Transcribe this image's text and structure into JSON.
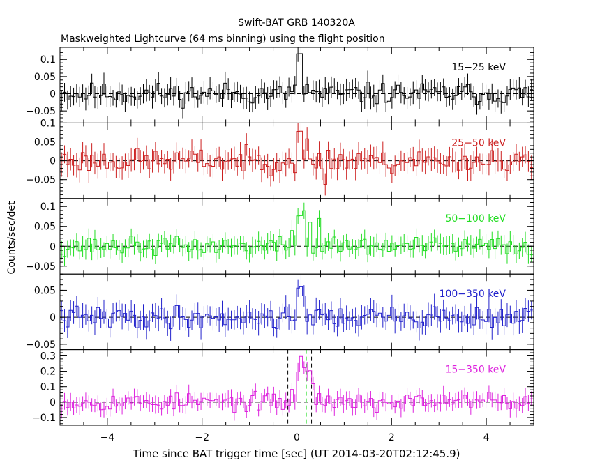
{
  "chart_data": {
    "type": "line",
    "title": "Swift-BAT GRB 140320A",
    "subtitle": "Maskweighted Lightcurve (64 ms binning) using the flight position",
    "xlabel": "Time since BAT trigger time [sec] (UT 2014-03-20T02:12:45.9)",
    "ylabel": "Counts/sec/det",
    "xlim": [
      -5,
      5
    ],
    "x_ticks": [
      -4,
      -2,
      0,
      2,
      4
    ],
    "x_tick_labels": [
      "−4",
      "−2",
      "0",
      "2",
      "4"
    ],
    "bin_width_s": 0.064,
    "vlines_black": [
      -0.19,
      0.31
    ],
    "vlines_green": [
      0.0,
      0.2
    ],
    "panels": [
      {
        "name": "15−25 keV",
        "color": "#000000",
        "ylim": [
          -0.085,
          0.135
        ],
        "yticks": [
          -0.05,
          0,
          0.05,
          0.1
        ],
        "ytick_labels": [
          "−0.05",
          "0",
          "0.05",
          "0.1"
        ],
        "features": [
          {
            "t": 0.05,
            "v": 0.115
          },
          {
            "t": 0.2,
            "v": 0.03
          }
        ],
        "noise": 0.022,
        "err": 0.028,
        "seed": 11
      },
      {
        "name": "25−50 keV",
        "color": "#cc1f1f",
        "ylim": [
          -0.1,
          0.1
        ],
        "yticks": [
          -0.05,
          0,
          0.05,
          0.1
        ],
        "ytick_labels": [
          "−0.05",
          "0",
          "0.05",
          "0.1"
        ],
        "features": [
          {
            "t": 0.05,
            "v": 0.075
          },
          {
            "t": 0.2,
            "v": 0.055
          },
          {
            "t": 0.6,
            "v": -0.06
          }
        ],
        "noise": 0.022,
        "err": 0.028,
        "seed": 23
      },
      {
        "name": "50−100 keV",
        "color": "#22dd22",
        "ylim": [
          -0.07,
          0.12
        ],
        "yticks": [
          -0.05,
          0,
          0.05,
          0.1
        ],
        "ytick_labels": [
          "−0.05",
          "0",
          "0.05",
          "0.1"
        ],
        "features": [
          {
            "t": -0.1,
            "v": 0.04
          },
          {
            "t": 0.05,
            "v": 0.075
          },
          {
            "t": 0.15,
            "v": 0.09
          },
          {
            "t": 0.3,
            "v": 0.06
          },
          {
            "t": 0.45,
            "v": 0.07
          }
        ],
        "noise": 0.016,
        "err": 0.022,
        "seed": 37
      },
      {
        "name": "100−350 keV",
        "color": "#2222cc",
        "ylim": [
          -0.06,
          0.08
        ],
        "yticks": [
          -0.05,
          0,
          0.05
        ],
        "ytick_labels": [
          "−0.05",
          "0",
          "0.05"
        ],
        "features": [
          {
            "t": 0.05,
            "v": 0.055
          },
          {
            "t": 0.15,
            "v": 0.04
          }
        ],
        "noise": 0.014,
        "err": 0.02,
        "seed": 41
      },
      {
        "name": "15−350 keV",
        "color": "#dd22dd",
        "ylim": [
          -0.15,
          0.34
        ],
        "yticks": [
          -0.1,
          0,
          0.1,
          0.2,
          0.3
        ],
        "ytick_labels": [
          "−0.1",
          "0",
          "0.1",
          "0.2",
          "0.3"
        ],
        "features": [
          {
            "t": -0.12,
            "v": 0.08
          },
          {
            "t": 0.0,
            "v": 0.2
          },
          {
            "t": 0.07,
            "v": 0.3
          },
          {
            "t": 0.15,
            "v": 0.22
          },
          {
            "t": 0.25,
            "v": 0.2
          },
          {
            "t": 0.35,
            "v": 0.12
          },
          {
            "t": 0.45,
            "v": 0.06
          }
        ],
        "noise": 0.04,
        "err": 0.05,
        "seed": 53
      }
    ]
  }
}
